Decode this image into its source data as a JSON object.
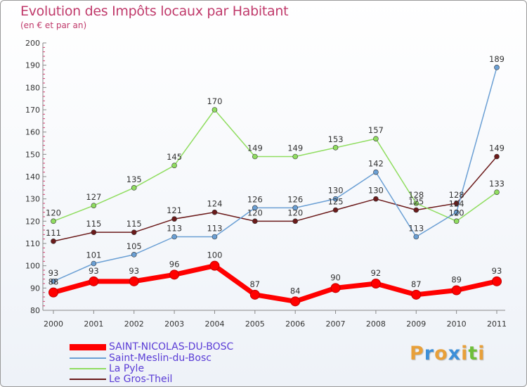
{
  "chart_data": {
    "type": "line",
    "title": "Evolution des Impôts locaux par Habitant",
    "subtitle": "(en € et par an)",
    "xlabel": "",
    "ylabel": "",
    "categories": [
      "2000",
      "2001",
      "2002",
      "2003",
      "2004",
      "2005",
      "2006",
      "2007",
      "2008",
      "2009",
      "2010",
      "2011"
    ],
    "ylim": [
      80,
      200
    ],
    "yticks": [
      80,
      90,
      100,
      110,
      120,
      130,
      140,
      150,
      160,
      170,
      180,
      190,
      200
    ],
    "yticks_labels": [
      "80",
      "90",
      "100",
      "110",
      "120",
      "130",
      "140",
      "150",
      "160",
      "170",
      "180",
      "190",
      "200"
    ],
    "grid": false,
    "legend_position": "bottom-left",
    "series": [
      {
        "name": "SAINT-NICOLAS-DU-BOSC",
        "color": "#ff0000",
        "values": [
          88,
          93,
          93,
          96,
          100,
          87,
          84,
          90,
          92,
          87,
          89,
          93
        ],
        "labels": [
          "88",
          "93",
          "93",
          "96",
          "100",
          "87",
          "84",
          "90",
          "92",
          "87",
          "89",
          "93"
        ]
      },
      {
        "name": "Saint-Meslin-du-Bosc",
        "color": "#6a9fd4",
        "values": [
          93,
          101,
          105,
          113,
          113,
          126,
          126,
          130,
          142,
          113,
          124,
          189
        ],
        "labels": [
          "93",
          "101",
          "105",
          "113",
          "113",
          "126",
          "126",
          "130",
          "142",
          "113",
          "124",
          "189"
        ]
      },
      {
        "name": "La Pyle",
        "color": "#90dd60",
        "values": [
          120,
          127,
          135,
          145,
          170,
          149,
          149,
          153,
          157,
          128,
          120,
          133
        ],
        "labels": [
          "120",
          "127",
          "135",
          "145",
          "170",
          "149",
          "149",
          "153",
          "157",
          "128",
          "120",
          "133"
        ]
      },
      {
        "name": "Le Gros-Theil",
        "color": "#6b1a1a",
        "values": [
          111,
          115,
          115,
          121,
          124,
          120,
          120,
          125,
          130,
          125,
          128,
          149
        ],
        "labels": [
          "111",
          "115",
          "115",
          "121",
          "124",
          "120",
          "120",
          "125",
          "130",
          "125",
          "128",
          "149"
        ]
      }
    ]
  },
  "brand": {
    "letters": [
      {
        "ch": "P",
        "color": "#e8a03a"
      },
      {
        "ch": "r",
        "color": "#3c8fd8"
      },
      {
        "ch": "o",
        "color": "#e8a03a"
      },
      {
        "ch": "x",
        "color": "#3c8fd8"
      },
      {
        "ch": "i",
        "color": "#e8a03a"
      },
      {
        "ch": "t",
        "color": "#6fbf3a"
      },
      {
        "ch": "i",
        "color": "#e8a03a"
      }
    ]
  }
}
